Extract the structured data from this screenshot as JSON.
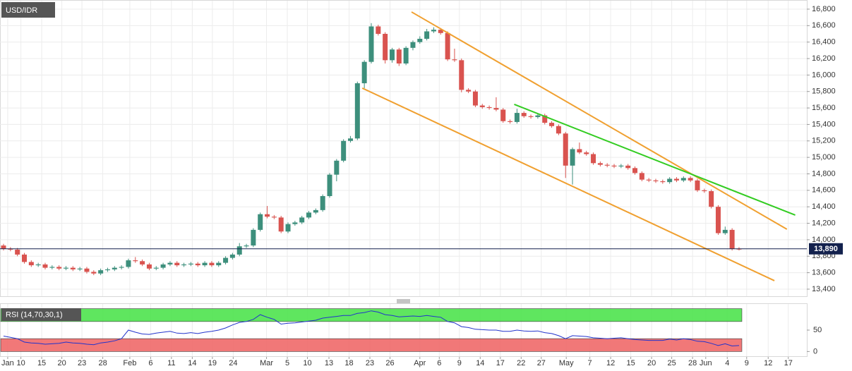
{
  "chart_data": [
    {
      "type": "candlestick",
      "title": "USD/IDR",
      "up_color": "#3d8f7c",
      "down_color": "#d9534f",
      "open": [
        13930,
        13890,
        13880,
        13820,
        13730,
        13690,
        13700,
        13660,
        13670,
        13650,
        13660,
        13640,
        13650,
        13610,
        13590,
        13630,
        13640,
        13660,
        13670,
        13750,
        13740,
        13700,
        13650,
        13660,
        13700,
        13720,
        13690,
        13700,
        13710,
        13690,
        13720,
        13690,
        13720,
        13780,
        13820,
        13920,
        13930,
        14120,
        14310,
        14280,
        14270,
        14100,
        14190,
        14210,
        14270,
        14330,
        14360,
        14530,
        14790,
        14960,
        15200,
        15230,
        15900,
        16160,
        16590,
        16500,
        16180,
        16310,
        16140,
        16330,
        16400,
        16440,
        16530,
        16550,
        16510,
        16190,
        16180,
        15820,
        15800,
        15630,
        15610,
        15600,
        15580,
        15440,
        15430,
        15540,
        15500,
        15490,
        15510,
        15420,
        15380,
        15290,
        14900,
        15100,
        15060,
        15040,
        14930,
        14910,
        14900,
        14890,
        14900,
        14870,
        14810,
        14730,
        14720,
        14710,
        14700,
        14740,
        14720,
        14750,
        14720,
        14600,
        14590,
        14400,
        14080,
        14120,
        13890
      ],
      "high": [
        13950,
        13910,
        13900,
        13840,
        13750,
        13720,
        13720,
        13690,
        13690,
        13680,
        13680,
        13670,
        13670,
        13630,
        13650,
        13660,
        13680,
        13690,
        13770,
        13790,
        13760,
        13720,
        13680,
        13720,
        13740,
        13740,
        13720,
        13730,
        13730,
        13740,
        13740,
        13740,
        13800,
        13840,
        13960,
        13950,
        14140,
        14330,
        14410,
        14300,
        14290,
        14210,
        14230,
        14290,
        14350,
        14380,
        14550,
        14810,
        14980,
        15220,
        15260,
        15920,
        16180,
        16630,
        16610,
        16520,
        16330,
        16330,
        16350,
        16420,
        16470,
        16560,
        16580,
        16570,
        16530,
        16320,
        16200,
        15840,
        15820,
        15650,
        15630,
        15730,
        15600,
        15460,
        15590,
        15560,
        15520,
        15530,
        15530,
        15440,
        15400,
        15310,
        15120,
        15180,
        15080,
        15060,
        14950,
        14930,
        14920,
        14920,
        14920,
        14890,
        14830,
        14750,
        14740,
        14730,
        14760,
        14760,
        14770,
        14770,
        14740,
        14620,
        14610,
        14420,
        14160,
        14140,
        13910
      ],
      "low": [
        13870,
        13860,
        13800,
        13710,
        13670,
        13670,
        13640,
        13640,
        13630,
        13630,
        13620,
        13620,
        13590,
        13570,
        13570,
        13610,
        13620,
        13640,
        13650,
        13720,
        13680,
        13630,
        13630,
        13640,
        13680,
        13670,
        13670,
        13680,
        13670,
        13670,
        13670,
        13670,
        13700,
        13760,
        13800,
        13900,
        13910,
        14100,
        14260,
        14250,
        14080,
        14080,
        14170,
        14190,
        14250,
        14310,
        14340,
        14510,
        14710,
        14940,
        15180,
        15210,
        15840,
        16140,
        16480,
        16140,
        16150,
        16110,
        16120,
        16300,
        16380,
        16420,
        16510,
        16490,
        16170,
        16160,
        15790,
        15780,
        15610,
        15590,
        15580,
        15560,
        15420,
        15410,
        15410,
        15480,
        15470,
        15470,
        15400,
        15360,
        15270,
        14750,
        14670,
        15040,
        15020,
        14910,
        14890,
        14880,
        14870,
        14870,
        14850,
        14790,
        14710,
        14700,
        14690,
        14680,
        14680,
        14700,
        14700,
        14700,
        14580,
        14570,
        14380,
        14060,
        14060,
        13870,
        13870
      ],
      "close": [
        13890,
        13880,
        13820,
        13730,
        13690,
        13700,
        13660,
        13670,
        13650,
        13660,
        13640,
        13650,
        13610,
        13590,
        13630,
        13640,
        13660,
        13670,
        13750,
        13740,
        13700,
        13650,
        13660,
        13700,
        13720,
        13690,
        13700,
        13710,
        13690,
        13720,
        13690,
        13720,
        13780,
        13820,
        13920,
        13930,
        14120,
        14310,
        14280,
        14270,
        14100,
        14190,
        14210,
        14270,
        14330,
        14360,
        14530,
        14790,
        14960,
        15200,
        15230,
        15900,
        16160,
        16590,
        16500,
        16180,
        16310,
        16140,
        16330,
        16400,
        16440,
        16530,
        16550,
        16510,
        16190,
        16180,
        15820,
        15800,
        15630,
        15610,
        15600,
        15580,
        15440,
        15430,
        15540,
        15500,
        15490,
        15510,
        15420,
        15380,
        15290,
        14900,
        15100,
        15060,
        15040,
        14930,
        14910,
        14900,
        14890,
        14900,
        14870,
        14810,
        14730,
        14720,
        14710,
        14700,
        14740,
        14720,
        14750,
        14720,
        14600,
        14590,
        14400,
        14080,
        14120,
        13890,
        13885
      ],
      "xlim": [
        -0.51,
        115.77
      ],
      "xticks": [
        {
          "value": 0.6,
          "label": "Jan"
        },
        {
          "value": 2.5,
          "label": "10"
        },
        {
          "value": 5.5,
          "label": "15"
        },
        {
          "value": 8.4,
          "label": "20"
        },
        {
          "value": 11.3,
          "label": "23"
        },
        {
          "value": 14.3,
          "label": "28"
        },
        {
          "value": 18.2,
          "label": "Feb"
        },
        {
          "value": 21.2,
          "label": "6"
        },
        {
          "value": 24.2,
          "label": "11"
        },
        {
          "value": 27.2,
          "label": "14"
        },
        {
          "value": 30.1,
          "label": "19"
        },
        {
          "value": 33.1,
          "label": "24"
        },
        {
          "value": 37.9,
          "label": "Mar"
        },
        {
          "value": 40.9,
          "label": "5"
        },
        {
          "value": 43.8,
          "label": "10"
        },
        {
          "value": 46.9,
          "label": "13"
        },
        {
          "value": 49.8,
          "label": "18"
        },
        {
          "value": 52.8,
          "label": "23"
        },
        {
          "value": 55.7,
          "label": "26"
        },
        {
          "value": 60.0,
          "label": "Apr"
        },
        {
          "value": 62.8,
          "label": "6"
        },
        {
          "value": 65.7,
          "label": "9"
        },
        {
          "value": 68.7,
          "label": "14"
        },
        {
          "value": 71.6,
          "label": "17"
        },
        {
          "value": 74.6,
          "label": "22"
        },
        {
          "value": 77.5,
          "label": "27"
        },
        {
          "value": 81.1,
          "label": "May"
        },
        {
          "value": 84.5,
          "label": "7"
        },
        {
          "value": 87.5,
          "label": "12"
        },
        {
          "value": 90.4,
          "label": "15"
        },
        {
          "value": 93.4,
          "label": "20"
        },
        {
          "value": 96.3,
          "label": "25"
        },
        {
          "value": 99.3,
          "label": "28"
        },
        {
          "value": 101.2,
          "label": "Jun"
        },
        {
          "value": 104.3,
          "label": "4"
        },
        {
          "value": 107.1,
          "label": "9"
        },
        {
          "value": 110.2,
          "label": "12"
        },
        {
          "value": 113.1,
          "label": "17"
        }
      ],
      "ylim": [
        13314,
        16911
      ],
      "yticks": [
        {
          "value": 13400,
          "label": "13,400"
        },
        {
          "value": 13600,
          "label": "13,600"
        },
        {
          "value": 13800,
          "label": "13,800"
        },
        {
          "value": 14000,
          "label": "14,000"
        },
        {
          "value": 14200,
          "label": "14,200"
        },
        {
          "value": 14400,
          "label": "14,400"
        },
        {
          "value": 14600,
          "label": "14,600"
        },
        {
          "value": 14800,
          "label": "14,800"
        },
        {
          "value": 15000,
          "label": "15,000"
        },
        {
          "value": 15200,
          "label": "15,200"
        },
        {
          "value": 15400,
          "label": "15,400"
        },
        {
          "value": 15600,
          "label": "15,600"
        },
        {
          "value": 15800,
          "label": "15,800"
        },
        {
          "value": 16000,
          "label": "16,000"
        },
        {
          "value": 16200,
          "label": "16,200"
        },
        {
          "value": 16400,
          "label": "16,400"
        },
        {
          "value": 16600,
          "label": "16,600"
        },
        {
          "value": 16800,
          "label": "16,800"
        }
      ],
      "grid": true,
      "price_line": {
        "value": 13890,
        "label": "13,890",
        "color": "#13214d"
      },
      "trendlines": [
        {
          "color": "#f0a030",
          "x": [
            58.8,
            112.9
          ],
          "y": [
            16766,
            14128
          ]
        },
        {
          "color": "#f0a030",
          "x": [
            51.7,
            111.1
          ],
          "y": [
            15841,
            13503
          ]
        },
        {
          "color": "#33cc22",
          "x": [
            73.6,
            114.1
          ],
          "y": [
            15644,
            14299
          ]
        }
      ]
    },
    {
      "type": "line",
      "title": "RSI (14,70,30,1)",
      "color": "#2233cc",
      "values": [
        36,
        33,
        30,
        22,
        20,
        19,
        17,
        18,
        19,
        22,
        20,
        19,
        17,
        16,
        20,
        22,
        25,
        30,
        50,
        45,
        41,
        40,
        43,
        45,
        47,
        43,
        42,
        44,
        42,
        45,
        47,
        50,
        55,
        62,
        68,
        70,
        75,
        86,
        80,
        75,
        64,
        66,
        67,
        69,
        71,
        73,
        78,
        80,
        82,
        84,
        84,
        89,
        91,
        95,
        92,
        86,
        84,
        81,
        82,
        83,
        82,
        84,
        82,
        80,
        70,
        67,
        58,
        56,
        52,
        51,
        50,
        50,
        47,
        47,
        50,
        48,
        47,
        48,
        44,
        42,
        37,
        30,
        37,
        36,
        35,
        32,
        31,
        30,
        31,
        32,
        30,
        28,
        27,
        26,
        26,
        26,
        29,
        27,
        30,
        28,
        24,
        23,
        19,
        14,
        18,
        13,
        14
      ],
      "xlim": [
        -0.51,
        115.77
      ],
      "ylim": [
        -10.9,
        110.9
      ],
      "yticks": [
        0,
        50
      ],
      "bands": [
        {
          "from": 70,
          "to": 100,
          "color": "#4ee44e"
        },
        {
          "from": 0,
          "to": 30,
          "color": "#f06a6a"
        }
      ]
    }
  ]
}
